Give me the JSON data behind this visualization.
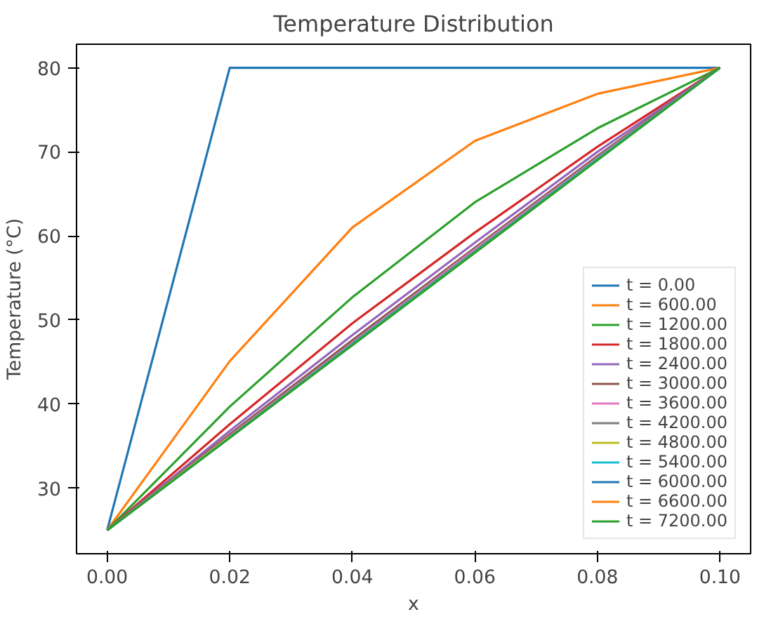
{
  "chart_data": {
    "type": "line",
    "title": "Temperature Distribution",
    "xlabel": "x",
    "ylabel": "Temperature (°C)",
    "x": [
      0,
      0.02,
      0.04,
      0.06,
      0.08,
      0.1
    ],
    "xlim": [
      -0.005,
      0.105
    ],
    "ylim": [
      22.2,
      82.8
    ],
    "xticks": [
      {
        "value": 0,
        "label": "0.00"
      },
      {
        "value": 0.02,
        "label": "0.02"
      },
      {
        "value": 0.04,
        "label": "0.04"
      },
      {
        "value": 0.06,
        "label": "0.06"
      },
      {
        "value": 0.08,
        "label": "0.08"
      },
      {
        "value": 0.1,
        "label": "0.10"
      }
    ],
    "yticks": [
      30,
      40,
      50,
      60,
      70,
      80
    ],
    "grid": false,
    "legend": "bottom right",
    "line_style": "solid",
    "series": [
      {
        "name": "t = 0.00",
        "color": "#1f77b4",
        "values": [
          25,
          80,
          80,
          80,
          80,
          80
        ]
      },
      {
        "name": "t = 600.00",
        "color": "#ff7f0e",
        "values": [
          25,
          45.1,
          61,
          71.3,
          76.9,
          80
        ]
      },
      {
        "name": "t = 1200.00",
        "color": "#2ca02c",
        "values": [
          25,
          39.7,
          52.7,
          64,
          72.8,
          80
        ]
      },
      {
        "name": "t = 1800.00",
        "color": "#d62728",
        "values": [
          25,
          37.6,
          49.6,
          60.4,
          70.6,
          80
        ]
      },
      {
        "name": "t = 2400.00",
        "color": "#9467bd",
        "values": [
          25,
          36.8,
          48.2,
          59.2,
          70,
          80
        ]
      },
      {
        "name": "t = 3000.00",
        "color": "#8c564b",
        "values": [
          25,
          36.4,
          47.6,
          58.6,
          69.5,
          80
        ]
      },
      {
        "name": "t = 3600.00",
        "color": "#e377c2",
        "values": [
          25,
          36.2,
          47.3,
          58.4,
          69.3,
          80
        ]
      },
      {
        "name": "t = 4200.00",
        "color": "#7f7f7f",
        "values": [
          25,
          36.1,
          47.2,
          58.2,
          69.2,
          80
        ]
      },
      {
        "name": "t = 4800.00",
        "color": "#bcbd22",
        "values": [
          25,
          36.1,
          null,
          null,
          null,
          null
        ]
      },
      {
        "name": "t = 5400.00",
        "color": "#17becf",
        "values": [
          25,
          36,
          47.1,
          58.1,
          69.1,
          80
        ]
      },
      {
        "name": "t = 6000.00",
        "color": "#1f77b4",
        "values": [
          null,
          null,
          null,
          null,
          null,
          null
        ]
      },
      {
        "name": "t = 6600.00",
        "color": "#ff7f0e",
        "values": [
          null,
          null,
          null,
          null,
          null,
          null
        ]
      },
      {
        "name": "t = 7200.00",
        "color": "#2ca02c",
        "values": [
          25,
          36,
          47,
          58,
          69,
          80
        ]
      }
    ]
  }
}
